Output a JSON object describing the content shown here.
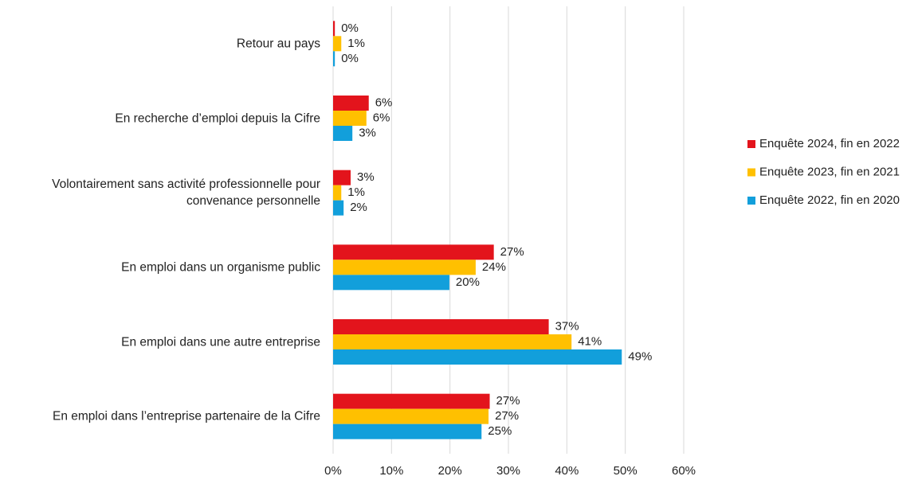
{
  "chart_data": {
    "type": "barh",
    "categories": [
      "Retour au pays",
      "En recherche d’emploi depuis la Cifre",
      "Volontairement sans activité professionnelle pour convenance personnelle",
      "En emploi dans un organisme public",
      "En emploi dans une autre entreprise",
      "En emploi dans l’entreprise partenaire de la Cifre"
    ],
    "series": [
      {
        "name": "Enquête 2024, fin en 2022",
        "color": "#e3141c",
        "values": [
          0.3,
          6.1,
          3.0,
          27.5,
          36.9,
          26.8
        ],
        "value_labels": [
          "0%",
          "6%",
          "3%",
          "27%",
          "37%",
          "27%"
        ]
      },
      {
        "name": "Enquête 2023, fin en 2021",
        "color": "#ffc000",
        "values": [
          1.4,
          5.7,
          1.4,
          24.4,
          40.8,
          26.6
        ],
        "value_labels": [
          "1%",
          "6%",
          "1%",
          "24%",
          "41%",
          "27%"
        ]
      },
      {
        "name": "Enquête 2022, fin en 2020",
        "color": "#129fdb",
        "values": [
          0.3,
          3.3,
          1.8,
          19.9,
          49.4,
          25.4
        ],
        "value_labels": [
          "0%",
          "3%",
          "2%",
          "20%",
          "49%",
          "25%"
        ]
      }
    ],
    "xlim": [
      0,
      60
    ],
    "xticks": [
      {
        "value": 0,
        "label": "0%"
      },
      {
        "value": 10,
        "label": "10%"
      },
      {
        "value": 20,
        "label": "20%"
      },
      {
        "value": 30,
        "label": "30%"
      },
      {
        "value": 40,
        "label": "40%"
      },
      {
        "value": 50,
        "label": "50%"
      },
      {
        "value": 60,
        "label": "60%"
      }
    ],
    "grid": true,
    "legend": "right"
  }
}
